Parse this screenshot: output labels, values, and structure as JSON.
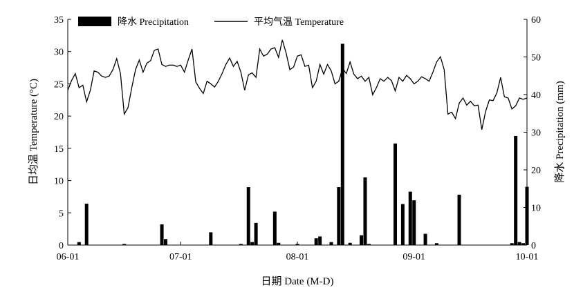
{
  "chart_data": {
    "type": "bar+line",
    "title": "",
    "xlabel": "日期 Date (M-D)",
    "ylabel_left": "日均温 Temperature (°C)",
    "ylabel_right": "降水 Precipitation (mm)",
    "x_range": [
      "2020-06-01",
      "2020-10-01"
    ],
    "x_ticks": [
      "06-01",
      "07-01",
      "08-01",
      "09-01",
      "10-01"
    ],
    "ylim_left": [
      0,
      35
    ],
    "yticks_left": [
      0,
      5,
      10,
      15,
      20,
      25,
      30,
      35
    ],
    "ylim_right": [
      0,
      60
    ],
    "yticks_right": [
      0,
      10,
      20,
      30,
      40,
      50,
      60
    ],
    "legend": {
      "placement": "top",
      "items": [
        {
          "label": "降水 Precipitation",
          "type": "bar"
        },
        {
          "label": "平均气温 Temperature",
          "type": "line"
        }
      ]
    },
    "grid": false,
    "series": [
      {
        "name": "降水 Precipitation",
        "type": "bar",
        "axis": "right",
        "color": "#000000",
        "points": [
          [
            "2020-06-04",
            0.8
          ],
          [
            "2020-06-06",
            11
          ],
          [
            "2020-06-16",
            0.3
          ],
          [
            "2020-06-26",
            5.5
          ],
          [
            "2020-06-27",
            1.6
          ],
          [
            "2020-07-09",
            3.4
          ],
          [
            "2020-07-17",
            0.3
          ],
          [
            "2020-07-19",
            15.4
          ],
          [
            "2020-07-20",
            0.8
          ],
          [
            "2020-07-21",
            5.9
          ],
          [
            "2020-07-26",
            8.9
          ],
          [
            "2020-07-27",
            0.6
          ],
          [
            "2020-08-01",
            0.3
          ],
          [
            "2020-08-06",
            1.8
          ],
          [
            "2020-08-07",
            2.3
          ],
          [
            "2020-08-10",
            0.8
          ],
          [
            "2020-08-12",
            15.4
          ],
          [
            "2020-08-13",
            53.5
          ],
          [
            "2020-08-15",
            0.6
          ],
          [
            "2020-08-18",
            2.6
          ],
          [
            "2020-08-19",
            18.0
          ],
          [
            "2020-08-20",
            0.3
          ],
          [
            "2020-08-27",
            27.0
          ],
          [
            "2020-08-29",
            10.9
          ],
          [
            "2020-08-31",
            14.2
          ],
          [
            "2020-09-01",
            11.9
          ],
          [
            "2020-09-04",
            3.0
          ],
          [
            "2020-09-07",
            0.5
          ],
          [
            "2020-09-13",
            13.4
          ],
          [
            "2020-09-27",
            0.5
          ],
          [
            "2020-09-28",
            29.0
          ],
          [
            "2020-09-29",
            0.8
          ],
          [
            "2020-09-30",
            0.5
          ],
          [
            "2020-10-01",
            15.5
          ]
        ]
      },
      {
        "name": "平均气温 Temperature",
        "type": "line",
        "axis": "left",
        "color": "#000000",
        "points": [
          [
            "2020-06-01",
            24.0
          ],
          [
            "2020-06-02",
            25.5
          ],
          [
            "2020-06-03",
            26.6
          ],
          [
            "2020-06-04",
            24.4
          ],
          [
            "2020-06-05",
            24.8
          ],
          [
            "2020-06-06",
            22.2
          ],
          [
            "2020-06-07",
            24.0
          ],
          [
            "2020-06-08",
            27.0
          ],
          [
            "2020-06-09",
            26.8
          ],
          [
            "2020-06-10",
            26.2
          ],
          [
            "2020-06-11",
            26.0
          ],
          [
            "2020-06-12",
            26.2
          ],
          [
            "2020-06-13",
            27.2
          ],
          [
            "2020-06-14",
            28.9
          ],
          [
            "2020-06-15",
            26.6
          ],
          [
            "2020-06-16",
            20.3
          ],
          [
            "2020-06-17",
            21.3
          ],
          [
            "2020-06-18",
            24.4
          ],
          [
            "2020-06-19",
            27.2
          ],
          [
            "2020-06-20",
            28.7
          ],
          [
            "2020-06-21",
            26.8
          ],
          [
            "2020-06-22",
            28.2
          ],
          [
            "2020-06-23",
            28.6
          ],
          [
            "2020-06-24",
            30.2
          ],
          [
            "2020-06-25",
            30.4
          ],
          [
            "2020-06-26",
            28.0
          ],
          [
            "2020-06-27",
            27.7
          ],
          [
            "2020-06-28",
            27.9
          ],
          [
            "2020-06-29",
            27.9
          ],
          [
            "2020-06-30",
            27.7
          ],
          [
            "2020-07-01",
            27.9
          ],
          [
            "2020-07-02",
            26.8
          ],
          [
            "2020-07-03",
            28.7
          ],
          [
            "2020-07-04",
            30.4
          ],
          [
            "2020-07-05",
            25.3
          ],
          [
            "2020-07-06",
            24.3
          ],
          [
            "2020-07-07",
            23.5
          ],
          [
            "2020-07-08",
            25.4
          ],
          [
            "2020-07-09",
            25.0
          ],
          [
            "2020-07-10",
            24.5
          ],
          [
            "2020-07-11",
            25.4
          ],
          [
            "2020-07-12",
            26.6
          ],
          [
            "2020-07-13",
            28.0
          ],
          [
            "2020-07-14",
            29.0
          ],
          [
            "2020-07-15",
            27.7
          ],
          [
            "2020-07-16",
            28.5
          ],
          [
            "2020-07-17",
            26.8
          ],
          [
            "2020-07-18",
            24.0
          ],
          [
            "2020-07-19",
            26.4
          ],
          [
            "2020-07-20",
            26.7
          ],
          [
            "2020-07-21",
            26.0
          ],
          [
            "2020-07-22",
            30.4
          ],
          [
            "2020-07-23",
            29.3
          ],
          [
            "2020-07-24",
            29.6
          ],
          [
            "2020-07-25",
            30.4
          ],
          [
            "2020-07-26",
            30.6
          ],
          [
            "2020-07-27",
            29.1
          ],
          [
            "2020-07-28",
            31.8
          ],
          [
            "2020-07-29",
            29.8
          ],
          [
            "2020-07-30",
            27.2
          ],
          [
            "2020-07-31",
            27.6
          ],
          [
            "2020-08-01",
            29.3
          ],
          [
            "2020-08-02",
            29.5
          ],
          [
            "2020-08-03",
            27.7
          ],
          [
            "2020-08-04",
            27.9
          ],
          [
            "2020-08-05",
            24.4
          ],
          [
            "2020-08-06",
            25.4
          ],
          [
            "2020-08-07",
            28.0
          ],
          [
            "2020-08-08",
            26.5
          ],
          [
            "2020-08-09",
            28.0
          ],
          [
            "2020-08-10",
            27.0
          ],
          [
            "2020-08-11",
            25.0
          ],
          [
            "2020-08-12",
            25.4
          ],
          [
            "2020-08-13",
            27.4
          ],
          [
            "2020-08-14",
            26.6
          ],
          [
            "2020-08-15",
            28.4
          ],
          [
            "2020-08-16",
            26.5
          ],
          [
            "2020-08-17",
            25.8
          ],
          [
            "2020-08-18",
            26.2
          ],
          [
            "2020-08-19",
            25.4
          ],
          [
            "2020-08-20",
            26.0
          ],
          [
            "2020-08-21",
            23.3
          ],
          [
            "2020-08-22",
            24.4
          ],
          [
            "2020-08-23",
            25.8
          ],
          [
            "2020-08-24",
            25.4
          ],
          [
            "2020-08-25",
            26.0
          ],
          [
            "2020-08-26",
            25.5
          ],
          [
            "2020-08-27",
            23.9
          ],
          [
            "2020-08-28",
            26.0
          ],
          [
            "2020-08-29",
            25.4
          ],
          [
            "2020-08-30",
            26.3
          ],
          [
            "2020-08-31",
            25.8
          ],
          [
            "2020-09-01",
            25.0
          ],
          [
            "2020-09-02",
            25.4
          ],
          [
            "2020-09-03",
            26.1
          ],
          [
            "2020-09-04",
            25.8
          ],
          [
            "2020-09-05",
            25.4
          ],
          [
            "2020-09-06",
            26.8
          ],
          [
            "2020-09-07",
            28.4
          ],
          [
            "2020-09-08",
            29.2
          ],
          [
            "2020-09-09",
            27.2
          ],
          [
            "2020-09-10",
            20.3
          ],
          [
            "2020-09-11",
            20.6
          ],
          [
            "2020-09-12",
            19.6
          ],
          [
            "2020-09-13",
            22.0
          ],
          [
            "2020-09-14",
            22.8
          ],
          [
            "2020-09-15",
            21.7
          ],
          [
            "2020-09-16",
            22.3
          ],
          [
            "2020-09-17",
            21.6
          ],
          [
            "2020-09-18",
            21.7
          ],
          [
            "2020-09-19",
            17.9
          ],
          [
            "2020-09-20",
            20.7
          ],
          [
            "2020-09-21",
            22.5
          ],
          [
            "2020-09-22",
            22.4
          ],
          [
            "2020-09-23",
            23.6
          ],
          [
            "2020-09-24",
            26.0
          ],
          [
            "2020-09-25",
            23.0
          ],
          [
            "2020-09-26",
            22.8
          ],
          [
            "2020-09-27",
            21.1
          ],
          [
            "2020-09-28",
            21.6
          ],
          [
            "2020-09-29",
            22.8
          ],
          [
            "2020-09-30",
            22.6
          ],
          [
            "2020-10-01",
            22.8
          ]
        ]
      }
    ]
  }
}
